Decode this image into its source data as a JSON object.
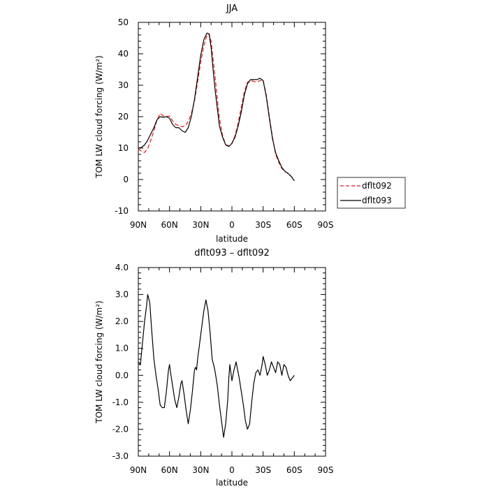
{
  "chart_data": [
    {
      "type": "line",
      "title": "JJA",
      "xlabel": "latitude",
      "ylabel": "TOM LW cloud forcing (W/m²)",
      "xlim": [
        90,
        -90
      ],
      "ylim": [
        -10,
        50
      ],
      "xticks": [
        {
          "value": 90,
          "label": "90N"
        },
        {
          "value": 60,
          "label": "60N"
        },
        {
          "value": 30,
          "label": "30N"
        },
        {
          "value": 0,
          "label": "0"
        },
        {
          "value": -30,
          "label": "30S"
        },
        {
          "value": -60,
          "label": "60S"
        },
        {
          "value": -90,
          "label": "90S"
        }
      ],
      "yticks": [
        {
          "value": 50,
          "label": "50"
        },
        {
          "value": 40,
          "label": "40"
        },
        {
          "value": 30,
          "label": "30"
        },
        {
          "value": 20,
          "label": "20"
        },
        {
          "value": 10,
          "label": "10"
        },
        {
          "value": 0,
          "label": "0"
        },
        {
          "value": -10,
          "label": "-10"
        }
      ],
      "legend": {
        "position": "right"
      },
      "series": [
        {
          "name": "dflt092",
          "color": "#e41a1c",
          "dash": "dashed",
          "points": [
            [
              90,
              9.8
            ],
            [
              87,
              9.0
            ],
            [
              84,
              8.6
            ],
            [
              81,
              9.8
            ],
            [
              78,
              12.5
            ],
            [
              75,
              15.5
            ],
            [
              72,
              19.0
            ],
            [
              69,
              21.0
            ],
            [
              66,
              20.3
            ],
            [
              63,
              20.0
            ],
            [
              60,
              20.2
            ],
            [
              57,
              18.7
            ],
            [
              54,
              17.5
            ],
            [
              51,
              17.2
            ],
            [
              48,
              16.8
            ],
            [
              45,
              17.0
            ],
            [
              42,
              18.5
            ],
            [
              39,
              21.0
            ],
            [
              36,
              25.0
            ],
            [
              33,
              31.0
            ],
            [
              30,
              37.5
            ],
            [
              27,
              42.5
            ],
            [
              24,
              46.0
            ],
            [
              22,
              46.4
            ],
            [
              20,
              44.0
            ],
            [
              18,
              38.0
            ],
            [
              16,
              32.0
            ],
            [
              14,
              25.5
            ],
            [
              12,
              19.5
            ],
            [
              9,
              14.0
            ],
            [
              6,
              11.0
            ],
            [
              3,
              10.8
            ],
            [
              0,
              11.5
            ],
            [
              -3,
              14.0
            ],
            [
              -6,
              18.0
            ],
            [
              -9,
              23.0
            ],
            [
              -12,
              28.0
            ],
            [
              -15,
              31.0
            ],
            [
              -18,
              31.5
            ],
            [
              -21,
              31.2
            ],
            [
              -24,
              31.0
            ],
            [
              -27,
              31.5
            ],
            [
              -30,
              31.5
            ],
            [
              -33,
              27.0
            ],
            [
              -36,
              20.0
            ],
            [
              -39,
              13.5
            ],
            [
              -42,
              8.0
            ],
            [
              -45,
              5.5
            ],
            [
              -48,
              3.5
            ],
            [
              -51,
              2.5
            ],
            [
              -54,
              2.0
            ],
            [
              -57,
              1.0
            ],
            [
              -60,
              -0.2
            ]
          ]
        },
        {
          "name": "dflt093",
          "color": "#000000",
          "dash": "solid",
          "points": [
            [
              90,
              10.0
            ],
            [
              87,
              10.2
            ],
            [
              84,
              11.0
            ],
            [
              81,
              12.5
            ],
            [
              78,
              14.5
            ],
            [
              75,
              16.5
            ],
            [
              72,
              19.0
            ],
            [
              69,
              20.0
            ],
            [
              66,
              19.8
            ],
            [
              63,
              20.0
            ],
            [
              60,
              19.5
            ],
            [
              57,
              17.5
            ],
            [
              54,
              16.5
            ],
            [
              51,
              16.5
            ],
            [
              48,
              15.5
            ],
            [
              45,
              15.0
            ],
            [
              42,
              16.5
            ],
            [
              39,
              20.0
            ],
            [
              36,
              25.5
            ],
            [
              33,
              32.5
            ],
            [
              30,
              39.5
            ],
            [
              27,
              44.5
            ],
            [
              24,
              46.6
            ],
            [
              22,
              46.3
            ],
            [
              20,
              42.0
            ],
            [
              18,
              34.5
            ],
            [
              16,
              28.0
            ],
            [
              14,
              22.5
            ],
            [
              12,
              17.0
            ],
            [
              9,
              13.5
            ],
            [
              6,
              11.0
            ],
            [
              3,
              10.5
            ],
            [
              0,
              11.5
            ],
            [
              -3,
              13.5
            ],
            [
              -6,
              17.0
            ],
            [
              -9,
              21.5
            ],
            [
              -12,
              27.0
            ],
            [
              -15,
              30.5
            ],
            [
              -18,
              31.8
            ],
            [
              -21,
              31.8
            ],
            [
              -24,
              31.8
            ],
            [
              -27,
              32.2
            ],
            [
              -30,
              31.5
            ],
            [
              -33,
              26.5
            ],
            [
              -36,
              19.5
            ],
            [
              -39,
              13.0
            ],
            [
              -42,
              8.5
            ],
            [
              -45,
              6.0
            ],
            [
              -48,
              3.8
            ],
            [
              -51,
              2.6
            ],
            [
              -54,
              1.9
            ],
            [
              -57,
              1.0
            ],
            [
              -60,
              -0.4
            ]
          ]
        }
      ]
    },
    {
      "type": "line",
      "title": "dflt093 – dflt092",
      "xlabel": "latitude",
      "ylabel": "TOM LW cloud forcing (W/m²)",
      "xlim": [
        90,
        -90
      ],
      "ylim": [
        -3,
        4
      ],
      "xticks": [
        {
          "value": 90,
          "label": "90N"
        },
        {
          "value": 60,
          "label": "60N"
        },
        {
          "value": 30,
          "label": "30N"
        },
        {
          "value": 0,
          "label": "0"
        },
        {
          "value": -30,
          "label": "30S"
        },
        {
          "value": -60,
          "label": "60S"
        },
        {
          "value": -90,
          "label": "90S"
        }
      ],
      "yticks": [
        {
          "value": 4,
          "label": "4.0"
        },
        {
          "value": 3,
          "label": "3.0"
        },
        {
          "value": 2,
          "label": "2.0"
        },
        {
          "value": 1,
          "label": "1.0"
        },
        {
          "value": 0,
          "label": "0.0"
        },
        {
          "value": -1,
          "label": "-1.0"
        },
        {
          "value": -2,
          "label": "-2.0"
        },
        {
          "value": -3,
          "label": "-3.0"
        }
      ],
      "series": [
        {
          "color": "#000000",
          "dash": "solid",
          "points": [
            [
              90,
              0.5
            ],
            [
              88,
              0.4
            ],
            [
              86,
              1.2
            ],
            [
              84,
              2.0
            ],
            [
              82,
              2.6
            ],
            [
              81,
              3.0
            ],
            [
              79,
              2.7
            ],
            [
              77,
              1.6
            ],
            [
              75,
              0.6
            ],
            [
              73,
              0.0
            ],
            [
              71,
              -0.5
            ],
            [
              69,
              -1.1
            ],
            [
              67,
              -1.2
            ],
            [
              65,
              -1.2
            ],
            [
              63,
              -0.6
            ],
            [
              61,
              0.2
            ],
            [
              60,
              0.4
            ],
            [
              59,
              0.1
            ],
            [
              57,
              -0.4
            ],
            [
              55,
              -0.9
            ],
            [
              53,
              -1.2
            ],
            [
              51,
              -0.8
            ],
            [
              49,
              -0.3
            ],
            [
              48,
              -0.2
            ],
            [
              46,
              -0.7
            ],
            [
              44,
              -1.3
            ],
            [
              42,
              -1.8
            ],
            [
              40,
              -1.3
            ],
            [
              38,
              -0.6
            ],
            [
              36,
              0.2
            ],
            [
              35,
              0.3
            ],
            [
              34,
              0.2
            ],
            [
              33,
              0.6
            ],
            [
              31,
              1.2
            ],
            [
              29,
              1.8
            ],
            [
              27,
              2.4
            ],
            [
              25,
              2.8
            ],
            [
              23,
              2.4
            ],
            [
              21,
              1.6
            ],
            [
              19,
              0.6
            ],
            [
              17,
              0.3
            ],
            [
              16,
              0.1
            ],
            [
              14,
              -0.4
            ],
            [
              12,
              -1.1
            ],
            [
              10,
              -1.7
            ],
            [
              8,
              -2.3
            ],
            [
              6,
              -1.8
            ],
            [
              4,
              -0.9
            ],
            [
              3,
              -0.1
            ],
            [
              2,
              0.4
            ],
            [
              1,
              0.1
            ],
            [
              0,
              -0.2
            ],
            [
              -2,
              0.2
            ],
            [
              -4,
              0.5
            ],
            [
              -5,
              0.3
            ],
            [
              -7,
              -0.1
            ],
            [
              -9,
              -0.6
            ],
            [
              -11,
              -1.1
            ],
            [
              -13,
              -1.7
            ],
            [
              -15,
              -2.0
            ],
            [
              -17,
              -1.8
            ],
            [
              -19,
              -1.0
            ],
            [
              -21,
              -0.3
            ],
            [
              -23,
              0.1
            ],
            [
              -25,
              0.2
            ],
            [
              -27,
              0.0
            ],
            [
              -29,
              0.4
            ],
            [
              -30,
              0.7
            ],
            [
              -32,
              0.4
            ],
            [
              -34,
              0.0
            ],
            [
              -36,
              0.2
            ],
            [
              -38,
              0.5
            ],
            [
              -40,
              0.3
            ],
            [
              -42,
              0.1
            ],
            [
              -44,
              0.5
            ],
            [
              -46,
              0.4
            ],
            [
              -48,
              0.0
            ],
            [
              -50,
              0.4
            ],
            [
              -52,
              0.3
            ],
            [
              -54,
              0.0
            ],
            [
              -56,
              -0.2
            ],
            [
              -58,
              -0.1
            ],
            [
              -60,
              0.0
            ]
          ]
        }
      ]
    }
  ]
}
